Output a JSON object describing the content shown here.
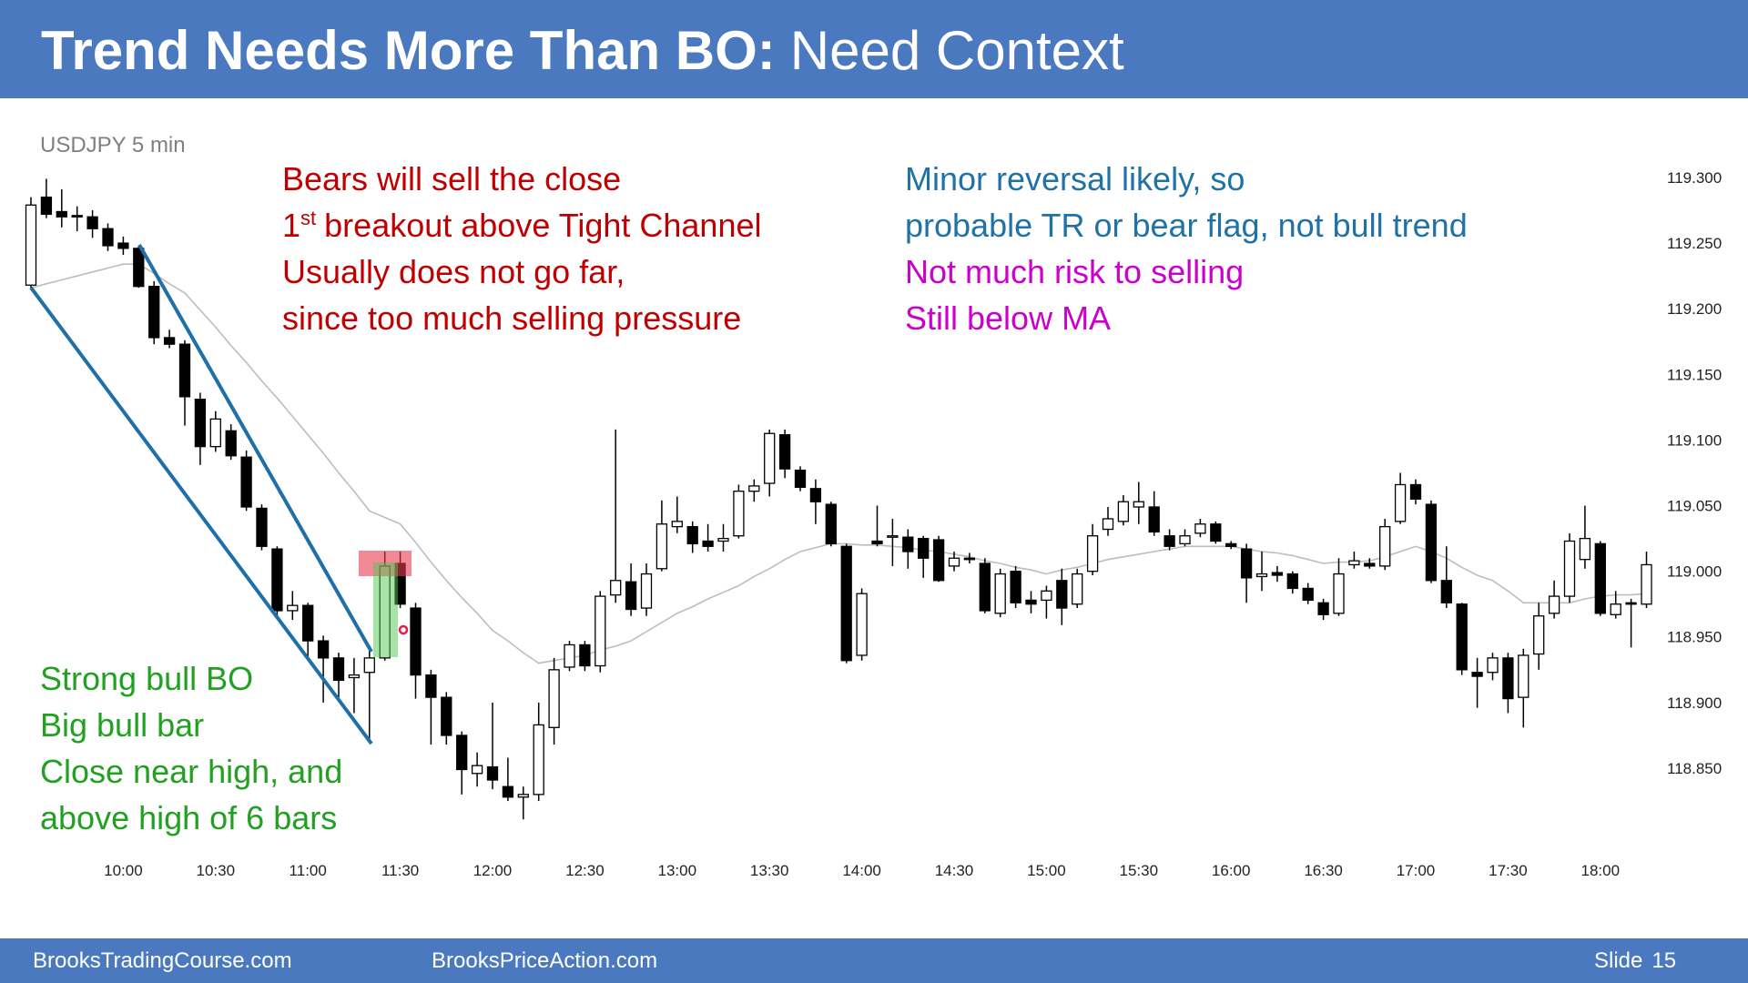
{
  "header": {
    "title_bold": "Trend Needs More Than BO:",
    "title_rest": "Need Context"
  },
  "footer": {
    "left": "BrooksTradingCourse.com",
    "middle": "BrooksPriceAction.com",
    "slide_label": "Slide",
    "slide_number": "15"
  },
  "chart_data": {
    "type": "candlestick",
    "title": "USDJPY 5 min",
    "up_color": "#ffffff",
    "down_color": "#000000",
    "ylim": [
      118.79,
      119.31
    ],
    "yticks": [
      {
        "value": 118.85,
        "label": "118.850"
      },
      {
        "value": 118.9,
        "label": "118.900"
      },
      {
        "value": 118.95,
        "label": "118.950"
      },
      {
        "value": 119.0,
        "label": "119.000"
      },
      {
        "value": 119.05,
        "label": "119.050"
      },
      {
        "value": 119.1,
        "label": "119.100"
      },
      {
        "value": 119.15,
        "label": "119.150"
      },
      {
        "value": 119.2,
        "label": "119.200"
      },
      {
        "value": 119.25,
        "label": "119.250"
      },
      {
        "value": 119.3,
        "label": "119.300"
      }
    ],
    "categories": [
      null,
      null,
      null,
      null,
      null,
      null,
      "10:00",
      null,
      null,
      null,
      null,
      null,
      "10:30",
      null,
      null,
      null,
      null,
      null,
      "11:00",
      null,
      null,
      null,
      null,
      null,
      "11:30",
      null,
      null,
      null,
      null,
      null,
      "12:00",
      null,
      null,
      null,
      null,
      null,
      "12:30",
      null,
      null,
      null,
      null,
      null,
      "13:00",
      null,
      null,
      null,
      null,
      null,
      "13:30",
      null,
      null,
      null,
      null,
      null,
      "14:00",
      null,
      null,
      null,
      null,
      null,
      "14:30",
      null,
      null,
      null,
      null,
      null,
      "15:00",
      null,
      null,
      null,
      null,
      null,
      "15:30",
      null,
      null,
      null,
      null,
      null,
      "16:00",
      null,
      null,
      null,
      null,
      null,
      "16:30",
      null,
      null,
      null,
      null,
      null,
      "17:00",
      null,
      null,
      null,
      null,
      null,
      "17:30",
      null,
      null,
      null,
      null,
      null,
      "18:00",
      null,
      null,
      null
    ],
    "ohlc": [
      [
        119.219,
        119.286,
        119.217,
        119.28
      ],
      [
        119.286,
        119.3,
        119.27,
        119.273
      ],
      [
        119.275,
        119.292,
        119.263,
        119.271
      ],
      [
        119.272,
        119.279,
        119.26,
        119.271
      ],
      [
        119.271,
        119.276,
        119.255,
        119.262
      ],
      [
        119.262,
        119.266,
        119.245,
        119.249
      ],
      [
        119.251,
        119.256,
        119.242,
        119.247
      ],
      [
        119.247,
        119.249,
        119.217,
        119.218
      ],
      [
        119.218,
        119.222,
        119.174,
        119.179
      ],
      [
        119.179,
        119.185,
        119.171,
        119.174
      ],
      [
        119.174,
        119.177,
        119.112,
        119.134
      ],
      [
        119.132,
        119.137,
        119.082,
        119.096
      ],
      [
        119.096,
        119.123,
        119.092,
        119.117
      ],
      [
        119.108,
        119.113,
        119.086,
        119.089
      ],
      [
        119.088,
        119.093,
        119.047,
        119.05
      ],
      [
        119.049,
        119.052,
        119.017,
        119.02
      ],
      [
        119.018,
        119.02,
        118.965,
        118.971
      ],
      [
        118.971,
        118.986,
        118.964,
        118.975
      ],
      [
        118.975,
        118.977,
        118.935,
        118.948
      ],
      [
        118.948,
        118.952,
        118.901,
        118.935
      ],
      [
        118.935,
        118.939,
        118.905,
        118.918
      ],
      [
        118.92,
        118.935,
        118.893,
        118.922
      ],
      [
        118.924,
        118.943,
        118.871,
        118.935
      ],
      [
        118.935,
        119.016,
        118.933,
        119.005
      ],
      [
        119.007,
        119.016,
        118.973,
        118.976
      ],
      [
        118.973,
        118.977,
        118.904,
        118.922
      ],
      [
        118.922,
        118.926,
        118.869,
        118.905
      ],
      [
        118.905,
        118.909,
        118.869,
        118.876
      ],
      [
        118.876,
        118.879,
        118.831,
        118.85
      ],
      [
        118.847,
        118.863,
        118.837,
        118.853
      ],
      [
        118.852,
        118.901,
        118.835,
        118.842
      ],
      [
        118.837,
        118.859,
        118.826,
        118.829
      ],
      [
        118.829,
        118.837,
        118.812,
        118.831
      ],
      [
        118.831,
        118.901,
        118.826,
        118.884
      ],
      [
        118.882,
        118.935,
        118.869,
        118.926
      ],
      [
        118.928,
        118.948,
        118.925,
        118.945
      ],
      [
        118.945,
        118.948,
        118.925,
        118.929
      ],
      [
        118.929,
        118.986,
        118.924,
        118.982
      ],
      [
        118.983,
        119.109,
        118.977,
        118.994
      ],
      [
        118.993,
        119.007,
        118.967,
        118.972
      ],
      [
        118.973,
        119.007,
        118.967,
        118.999
      ],
      [
        119.003,
        119.055,
        119.001,
        119.037
      ],
      [
        119.035,
        119.058,
        119.03,
        119.039
      ],
      [
        119.035,
        119.039,
        119.015,
        119.022
      ],
      [
        119.024,
        119.037,
        119.016,
        119.02
      ],
      [
        119.024,
        119.037,
        119.016,
        119.026
      ],
      [
        119.028,
        119.067,
        119.026,
        119.062
      ],
      [
        119.062,
        119.071,
        119.054,
        119.066
      ],
      [
        119.068,
        119.109,
        119.058,
        119.106
      ],
      [
        119.105,
        119.109,
        119.072,
        119.079
      ],
      [
        119.078,
        119.081,
        119.062,
        119.065
      ],
      [
        119.064,
        119.071,
        119.037,
        119.054
      ],
      [
        119.052,
        119.054,
        119.02,
        119.022
      ],
      [
        119.02,
        119.022,
        118.931,
        118.933
      ],
      [
        118.937,
        118.988,
        118.933,
        118.984
      ],
      [
        119.024,
        119.051,
        119.02,
        119.022
      ],
      [
        119.027,
        119.041,
        119.005,
        119.028
      ],
      [
        119.027,
        119.033,
        119.003,
        119.016
      ],
      [
        119.026,
        119.028,
        118.996,
        119.011
      ],
      [
        119.025,
        119.028,
        118.993,
        118.994
      ],
      [
        119.005,
        119.016,
        119.001,
        119.011
      ],
      [
        119.011,
        119.015,
        119.007,
        119.01
      ],
      [
        119.007,
        119.011,
        118.969,
        118.971
      ],
      [
        118.969,
        119.003,
        118.966,
        118.999
      ],
      [
        119.001,
        119.005,
        118.973,
        118.977
      ],
      [
        118.979,
        118.986,
        118.969,
        118.976
      ],
      [
        118.979,
        118.99,
        118.965,
        118.986
      ],
      [
        118.994,
        119.003,
        118.96,
        118.973
      ],
      [
        118.976,
        119.003,
        118.973,
        118.999
      ],
      [
        119.001,
        119.037,
        118.998,
        119.028
      ],
      [
        119.033,
        119.05,
        119.028,
        119.041
      ],
      [
        119.039,
        119.059,
        119.036,
        119.054
      ],
      [
        119.05,
        119.069,
        119.037,
        119.054
      ],
      [
        119.05,
        119.062,
        119.028,
        119.031
      ],
      [
        119.028,
        119.033,
        119.017,
        119.02
      ],
      [
        119.022,
        119.033,
        119.02,
        119.028
      ],
      [
        119.03,
        119.041,
        119.027,
        119.037
      ],
      [
        119.037,
        119.039,
        119.022,
        119.024
      ],
      [
        119.022,
        119.024,
        119.018,
        119.02
      ],
      [
        119.018,
        119.022,
        118.977,
        118.996
      ],
      [
        118.997,
        119.016,
        118.986,
        118.999
      ],
      [
        119.0,
        119.005,
        118.993,
        118.998
      ],
      [
        118.999,
        119.001,
        118.984,
        118.988
      ],
      [
        118.988,
        118.992,
        118.976,
        118.979
      ],
      [
        118.977,
        118.98,
        118.964,
        118.968
      ],
      [
        118.969,
        119.011,
        118.967,
        118.999
      ],
      [
        119.006,
        119.016,
        119.003,
        119.009
      ],
      [
        119.007,
        119.011,
        119.003,
        119.005
      ],
      [
        119.005,
        119.041,
        119.002,
        119.035
      ],
      [
        119.039,
        119.076,
        119.037,
        119.067
      ],
      [
        119.067,
        119.071,
        119.052,
        119.056
      ],
      [
        119.052,
        119.055,
        118.992,
        118.994
      ],
      [
        118.994,
        119.02,
        118.973,
        118.977
      ],
      [
        118.976,
        118.977,
        118.922,
        118.926
      ],
      [
        118.924,
        118.935,
        118.897,
        118.921
      ],
      [
        118.924,
        118.939,
        118.918,
        118.935
      ],
      [
        118.935,
        118.939,
        118.893,
        118.904
      ],
      [
        118.905,
        118.942,
        118.882,
        118.937
      ],
      [
        118.938,
        118.977,
        118.926,
        118.967
      ],
      [
        118.969,
        118.994,
        118.965,
        118.982
      ],
      [
        118.982,
        119.03,
        118.977,
        119.024
      ],
      [
        119.01,
        119.051,
        119.003,
        119.026
      ],
      [
        119.022,
        119.024,
        118.967,
        118.969
      ],
      [
        118.968,
        118.986,
        118.965,
        118.976
      ],
      [
        118.977,
        118.98,
        118.943,
        118.976
      ],
      [
        118.976,
        119.016,
        118.973,
        119.006
      ]
    ],
    "moving_average": {
      "color": "#bdbdbd",
      "values": [
        119.217,
        119.22,
        119.223,
        119.226,
        119.229,
        119.232,
        119.235,
        119.235,
        119.228,
        119.22,
        119.213,
        119.2,
        119.187,
        119.173,
        119.16,
        119.146,
        119.133,
        119.119,
        119.105,
        119.091,
        119.076,
        119.062,
        119.047,
        119.042,
        119.037,
        119.023,
        119.008,
        118.994,
        118.981,
        118.969,
        118.956,
        118.948,
        118.939,
        118.931,
        118.933,
        118.935,
        118.937,
        118.941,
        118.944,
        118.948,
        118.955,
        118.962,
        118.969,
        118.974,
        118.98,
        118.985,
        118.99,
        118.997,
        119.003,
        119.01,
        119.016,
        119.019,
        119.022,
        119.022,
        119.021,
        119.021,
        119.02,
        119.019,
        119.017,
        119.016,
        119.014,
        119.012,
        119.009,
        119.007,
        119.004,
        119.002,
        118.999,
        119.002,
        119.004,
        119.007,
        119.01,
        119.012,
        119.014,
        119.016,
        119.018,
        119.02,
        119.02,
        119.02,
        119.02,
        119.018,
        119.016,
        119.015,
        119.013,
        119.01,
        119.007,
        119.008,
        119.008,
        119.009,
        119.012,
        119.016,
        119.02,
        119.016,
        119.011,
        119.004,
        118.998,
        118.994,
        118.986,
        118.977,
        118.977,
        118.977,
        118.977,
        118.98,
        118.982,
        118.983,
        118.983,
        118.984
      ]
    },
    "annotations": {
      "red": {
        "color": "#c00000",
        "line1": "Bears will sell the close",
        "line2_num": "1",
        "line2_sup": "st",
        "line2_rest": "breakout above Tight Channel",
        "line3": "Usually does not go far,",
        "line4": "since too much selling pressure"
      },
      "blue": {
        "color": "#1f72a6",
        "line1": "Minor reversal likely, so",
        "line2": "probable TR or bear flag, not bull trend"
      },
      "magenta": {
        "color": "#cc00cc",
        "line1": "Not much risk to selling",
        "line2": "Still below MA"
      },
      "green": {
        "color": "#22a022",
        "line1": "Strong bull BO",
        "line2": "Big bull bar",
        "line3": "Close near high, and",
        "line4": "above high of 6 bars"
      }
    }
  }
}
